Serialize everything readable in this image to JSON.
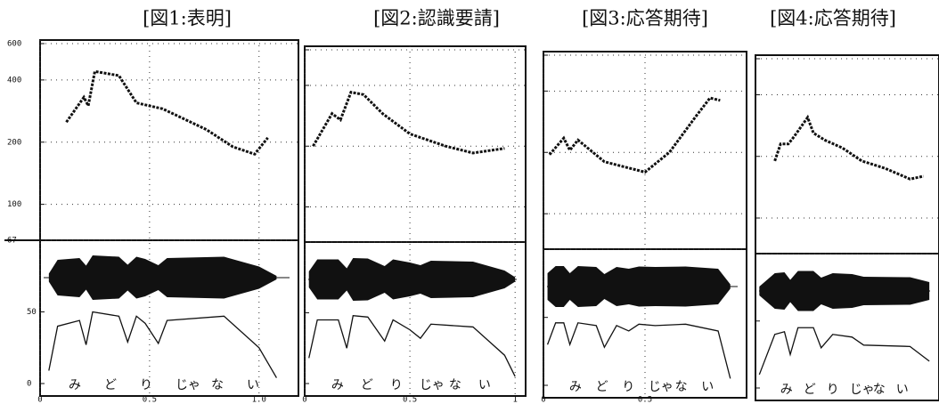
{
  "chart_data": [
    {
      "type": "line",
      "title": "[図1:表明]",
      "log_y": true,
      "ytick_labels": true,
      "grid": true,
      "color": "#111111",
      "xlim": [
        0,
        1.18
      ],
      "xticks": [
        0,
        0.5,
        {
          "value": 1,
          "label": "1.0"
        }
      ],
      "ylim": [
        67,
        600
      ],
      "yticks": [
        67,
        100,
        200,
        400,
        600
      ],
      "x": [
        0.12,
        0.2,
        0.22,
        0.25,
        0.36,
        0.44,
        0.56,
        0.76,
        0.88,
        0.98,
        1.04
      ],
      "values": [
        250,
        330,
        300,
        440,
        420,
        310,
        290,
        230,
        190,
        175,
        210
      ],
      "intensity": {
        "ylim": [
          0,
          95
        ],
        "yticks": [
          0,
          50
        ],
        "x": [
          0.04,
          0.08,
          0.18,
          0.21,
          0.24,
          0.36,
          0.4,
          0.44,
          0.48,
          0.54,
          0.58,
          0.84,
          1.0,
          1.08
        ],
        "values": [
          9,
          40,
          44,
          27,
          50,
          47,
          29,
          47,
          42,
          28,
          44,
          47,
          25,
          4
        ]
      },
      "syllables": [
        "み",
        "ど",
        "り",
        "じゃ",
        "な",
        "い"
      ]
    },
    {
      "type": "line",
      "title": "[図2:認識要請]",
      "log_y": true,
      "ytick_labels": false,
      "grid": true,
      "color": "#111111",
      "xlim": [
        0,
        1.05
      ],
      "xticks": [
        0,
        0.5,
        1
      ],
      "ylim": [
        67,
        600
      ],
      "yticks": [
        67,
        100,
        200,
        400,
        600
      ],
      "x": [
        0.04,
        0.13,
        0.17,
        0.22,
        0.28,
        0.37,
        0.5,
        0.67,
        0.8,
        0.95
      ],
      "values": [
        200,
        290,
        270,
        370,
        360,
        290,
        230,
        200,
        185,
        195
      ],
      "intensity": {
        "ylim": [
          0,
          95
        ],
        "yticks": [
          0,
          50
        ],
        "x": [
          0.02,
          0.06,
          0.16,
          0.2,
          0.23,
          0.3,
          0.38,
          0.42,
          0.5,
          0.55,
          0.6,
          0.8,
          0.95,
          1.0
        ],
        "values": [
          18,
          45,
          45,
          25,
          48,
          47,
          30,
          45,
          38,
          32,
          42,
          40,
          20,
          5
        ]
      },
      "syllables": [
        "み",
        "ど",
        "り",
        "じゃ",
        "な",
        "い"
      ]
    },
    {
      "type": "line",
      "title": "[図3:応答期待]",
      "log_y": true,
      "ytick_labels": false,
      "grid": true,
      "color": "#111111",
      "xlim": [
        0,
        1.0
      ],
      "xticks": [
        0,
        0.5
      ],
      "ylim": [
        67,
        600
      ],
      "yticks": [
        67,
        100,
        200,
        400,
        600
      ],
      "x": [
        0.03,
        0.1,
        0.13,
        0.17,
        0.3,
        0.5,
        0.62,
        0.75,
        0.82,
        0.87
      ],
      "values": [
        195,
        235,
        205,
        230,
        180,
        160,
        200,
        300,
        370,
        360
      ],
      "intensity": {
        "ylim": [
          0,
          95
        ],
        "yticks": [
          0,
          50
        ],
        "x": [
          0.02,
          0.06,
          0.1,
          0.13,
          0.17,
          0.26,
          0.3,
          0.36,
          0.42,
          0.47,
          0.55,
          0.7,
          0.86,
          0.92
        ],
        "values": [
          30,
          46,
          46,
          30,
          46,
          44,
          28,
          44,
          40,
          45,
          44,
          45,
          40,
          5
        ]
      },
      "syllables": [
        "み",
        "ど",
        "り",
        "じゃ",
        "な",
        "い"
      ]
    },
    {
      "type": "line",
      "title": "[図4:応答期待]",
      "log_y": true,
      "ytick_labels": false,
      "grid": true,
      "color": "#111111",
      "xlim": [
        0,
        0.95
      ],
      "ylim": [
        67,
        600
      ],
      "yticks": [
        67,
        100,
        200,
        400,
        600
      ],
      "x": [
        0.1,
        0.13,
        0.17,
        0.2,
        0.27,
        0.3,
        0.36,
        0.45,
        0.55,
        0.67,
        0.8,
        0.87
      ],
      "values": [
        190,
        230,
        230,
        250,
        310,
        260,
        240,
        220,
        190,
        175,
        155,
        160
      ],
      "intensity": {
        "ylim": [
          0,
          95
        ],
        "yticks": [
          0,
          50
        ],
        "x": [
          0.02,
          0.1,
          0.15,
          0.18,
          0.22,
          0.3,
          0.34,
          0.4,
          0.5,
          0.56,
          0.8,
          0.9
        ],
        "values": [
          10,
          40,
          42,
          25,
          45,
          45,
          30,
          40,
          38,
          32,
          31,
          20
        ]
      },
      "syllables": [
        "み",
        "ど",
        "り",
        "じゃ",
        "な",
        "い"
      ]
    }
  ]
}
